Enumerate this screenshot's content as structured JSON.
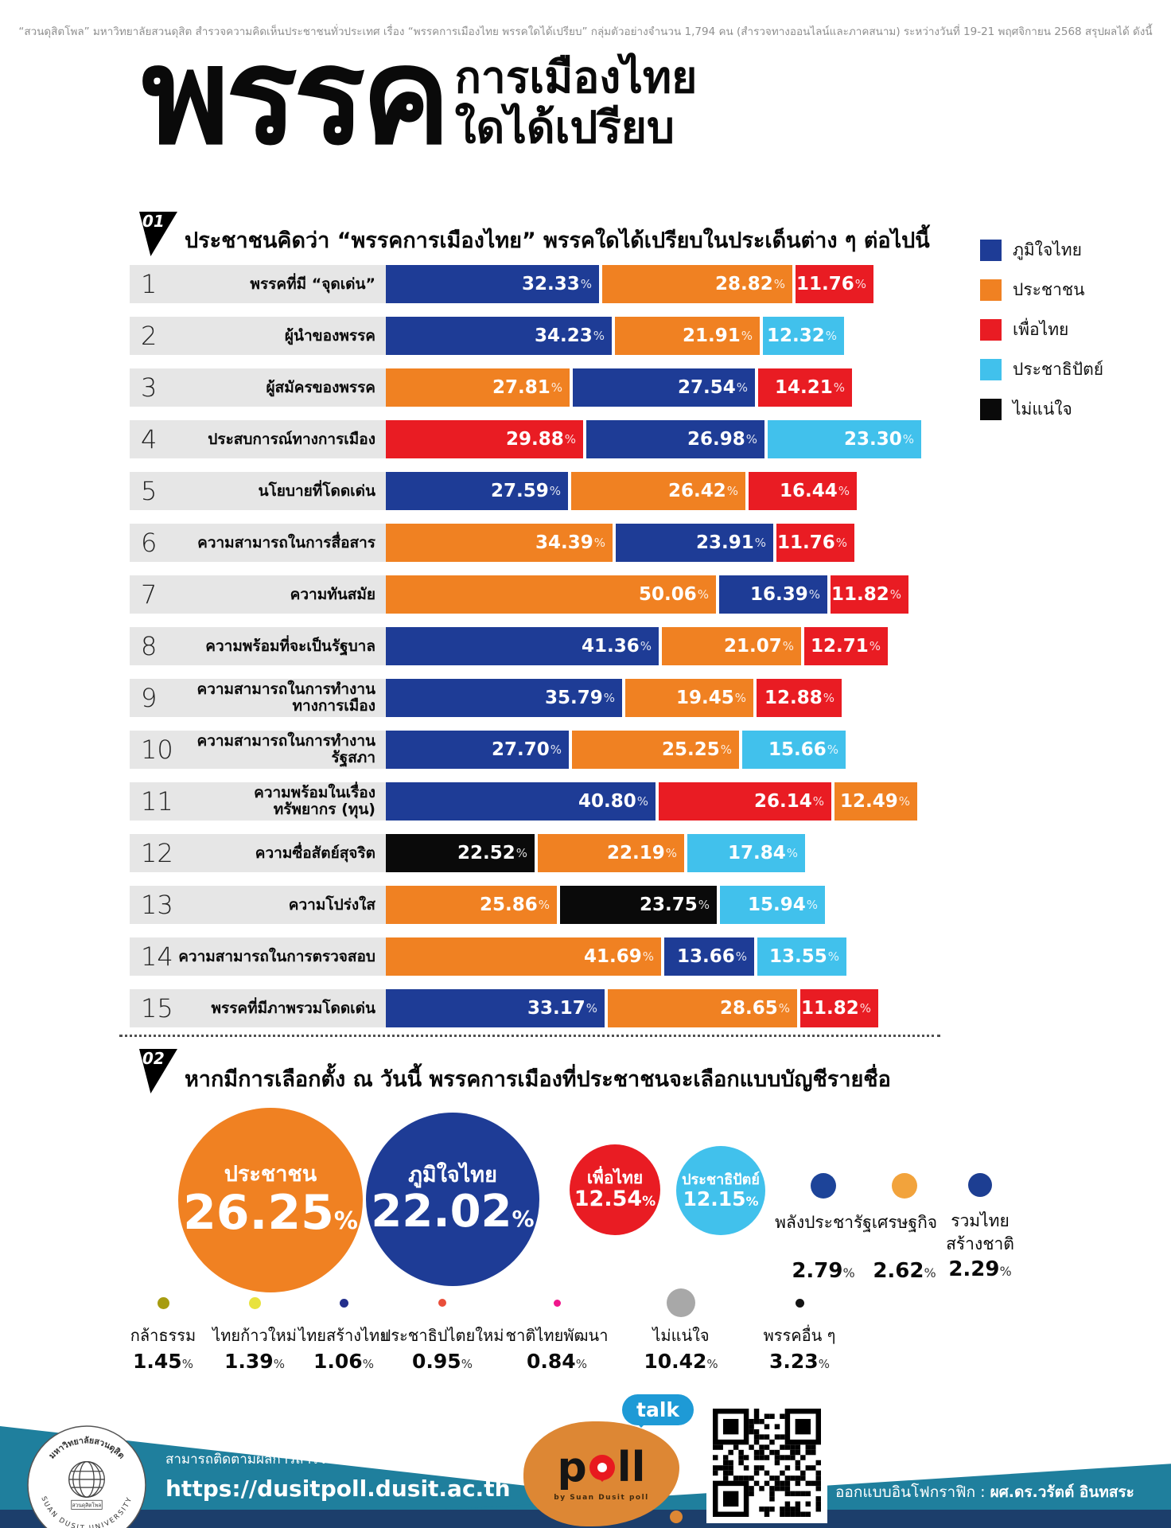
{
  "disclaimer": "“สวนดุสิตโพล” มหาวิทยาลัยสวนดุสิต สำรวจความคิดเห็นประชาชนทั่วประเทศ เรื่อง “พรรคการเมืองไทย พรรคใดได้เปรียบ” กลุ่มตัวอย่างจำนวน 1,794 คน  (สำรวจทางออนไลน์และภาคสนาม) ระหว่างวันที่ 19-21 พฤศจิกายน 2568  สรุปผลได้ ดังนี้",
  "title": {
    "big": "พรรค",
    "line1": "การเมืองไทย",
    "line2": "ใดได้เปรียบ"
  },
  "colors": {
    "blue": "#1e3c96",
    "orange": "#f08122",
    "red": "#e91c23",
    "lightblue": "#41c1ec",
    "black": "#0a0a0a",
    "label_bg": "#e6e6e6",
    "teal": "#1f7f9d",
    "navy": "#1c3e6b"
  },
  "chart_data": [
    {
      "type": "bar",
      "badge": "01",
      "title": "ประชาชนคิดว่า “พรรคการเมืองไทย” พรรคใดได้เปรียบในประเด็นต่าง ๆ ต่อไปนี้",
      "unit": "%",
      "stacked": true,
      "xlim": [
        0,
        100
      ],
      "legend": [
        {
          "label": "ภูมิใจไทย",
          "color_key": "blue"
        },
        {
          "label": "ประชาชน",
          "color_key": "orange"
        },
        {
          "label": "เพื่อไทย",
          "color_key": "red"
        },
        {
          "label": "ประชาธิปัตย์",
          "color_key": "lightblue"
        },
        {
          "label": "ไม่แน่ใจ",
          "color_key": "black"
        }
      ],
      "rows": [
        {
          "n": "1",
          "label": [
            "พรรคที่มี “จุดเด่น”"
          ],
          "segments": [
            {
              "party": "ภูมิใจไทย",
              "color_key": "blue",
              "value": 32.33
            },
            {
              "party": "ประชาชน",
              "color_key": "orange",
              "value": 28.82
            },
            {
              "party": "เพื่อไทย",
              "color_key": "red",
              "value": 11.76
            }
          ]
        },
        {
          "n": "2",
          "label": [
            "ผู้นำของพรรค"
          ],
          "segments": [
            {
              "party": "ภูมิใจไทย",
              "color_key": "blue",
              "value": 34.23
            },
            {
              "party": "ประชาชน",
              "color_key": "orange",
              "value": 21.91
            },
            {
              "party": "ประชาธิปัตย์",
              "color_key": "lightblue",
              "value": 12.32
            }
          ]
        },
        {
          "n": "3",
          "label": [
            "ผู้สมัครของพรรค"
          ],
          "segments": [
            {
              "party": "ประชาชน",
              "color_key": "orange",
              "value": 27.81
            },
            {
              "party": "ภูมิใจไทย",
              "color_key": "blue",
              "value": 27.54
            },
            {
              "party": "เพื่อไทย",
              "color_key": "red",
              "value": 14.21
            }
          ]
        },
        {
          "n": "4",
          "label": [
            "ประสบการณ์ทางการเมือง"
          ],
          "segments": [
            {
              "party": "เพื่อไทย",
              "color_key": "red",
              "value": 29.88
            },
            {
              "party": "ภูมิใจไทย",
              "color_key": "blue",
              "value": 26.98
            },
            {
              "party": "ประชาธิปัตย์",
              "color_key": "lightblue",
              "value": 23.3
            }
          ]
        },
        {
          "n": "5",
          "label": [
            "นโยบายที่โดดเด่น"
          ],
          "segments": [
            {
              "party": "ภูมิใจไทย",
              "color_key": "blue",
              "value": 27.59
            },
            {
              "party": "ประชาชน",
              "color_key": "orange",
              "value": 26.42
            },
            {
              "party": "เพื่อไทย",
              "color_key": "red",
              "value": 16.44
            }
          ]
        },
        {
          "n": "6",
          "label": [
            "ความสามารถในการสื่อสาร"
          ],
          "segments": [
            {
              "party": "ประชาชน",
              "color_key": "orange",
              "value": 34.39
            },
            {
              "party": "ภูมิใจไทย",
              "color_key": "blue",
              "value": 23.91
            },
            {
              "party": "เพื่อไทย",
              "color_key": "red",
              "value": 11.76
            }
          ]
        },
        {
          "n": "7",
          "label": [
            "ความทันสมัย"
          ],
          "segments": [
            {
              "party": "ประชาชน",
              "color_key": "orange",
              "value": 50.06
            },
            {
              "party": "ภูมิใจไทย",
              "color_key": "blue",
              "value": 16.39
            },
            {
              "party": "เพื่อไทย",
              "color_key": "red",
              "value": 11.82
            }
          ]
        },
        {
          "n": "8",
          "label": [
            "ความพร้อมที่จะเป็นรัฐบาล"
          ],
          "segments": [
            {
              "party": "ภูมิใจไทย",
              "color_key": "blue",
              "value": 41.36
            },
            {
              "party": "ประชาชน",
              "color_key": "orange",
              "value": 21.07
            },
            {
              "party": "เพื่อไทย",
              "color_key": "red",
              "value": 12.71
            }
          ]
        },
        {
          "n": "9",
          "label": [
            "ความสามารถในการทำงาน",
            "ทางการเมือง"
          ],
          "segments": [
            {
              "party": "ภูมิใจไทย",
              "color_key": "blue",
              "value": 35.79
            },
            {
              "party": "ประชาชน",
              "color_key": "orange",
              "value": 19.45
            },
            {
              "party": "เพื่อไทย",
              "color_key": "red",
              "value": 12.88
            }
          ]
        },
        {
          "n": "10",
          "label": [
            "ความสามารถในการทำงาน",
            "รัฐสภา"
          ],
          "segments": [
            {
              "party": "ภูมิใจไทย",
              "color_key": "blue",
              "value": 27.7
            },
            {
              "party": "ประชาชน",
              "color_key": "orange",
              "value": 25.25
            },
            {
              "party": "ประชาธิปัตย์",
              "color_key": "lightblue",
              "value": 15.66
            }
          ]
        },
        {
          "n": "11",
          "label": [
            "ความพร้อมในเรื่อง",
            "ทรัพยากร (ทุน)"
          ],
          "segments": [
            {
              "party": "ภูมิใจไทย",
              "color_key": "blue",
              "value": 40.8
            },
            {
              "party": "เพื่อไทย",
              "color_key": "red",
              "value": 26.14
            },
            {
              "party": "ประชาชน",
              "color_key": "orange",
              "value": 12.49
            }
          ]
        },
        {
          "n": "12",
          "label": [
            "ความซื่อสัตย์สุจริต"
          ],
          "segments": [
            {
              "party": "ไม่แน่ใจ",
              "color_key": "black",
              "value": 22.52
            },
            {
              "party": "ประชาชน",
              "color_key": "orange",
              "value": 22.19
            },
            {
              "party": "ประชาธิปัตย์",
              "color_key": "lightblue",
              "value": 17.84
            }
          ]
        },
        {
          "n": "13",
          "label": [
            "ความโปร่งใส"
          ],
          "segments": [
            {
              "party": "ประชาชน",
              "color_key": "orange",
              "value": 25.86
            },
            {
              "party": "ไม่แน่ใจ",
              "color_key": "black",
              "value": 23.75
            },
            {
              "party": "ประชาธิปัตย์",
              "color_key": "lightblue",
              "value": 15.94
            }
          ]
        },
        {
          "n": "14",
          "label": [
            "ความสามารถในการตรวจสอบ"
          ],
          "segments": [
            {
              "party": "ประชาชน",
              "color_key": "orange",
              "value": 41.69
            },
            {
              "party": "ภูมิใจไทย",
              "color_key": "blue",
              "value": 13.66
            },
            {
              "party": "ประชาธิปัตย์",
              "color_key": "lightblue",
              "value": 13.55
            }
          ]
        },
        {
          "n": "15",
          "label": [
            "พรรคที่มีภาพรวมโดดเด่น"
          ],
          "segments": [
            {
              "party": "ภูมิใจไทย",
              "color_key": "blue",
              "value": 33.17
            },
            {
              "party": "ประชาชน",
              "color_key": "orange",
              "value": 28.65
            },
            {
              "party": "เพื่อไทย",
              "color_key": "red",
              "value": 11.82
            }
          ]
        }
      ]
    },
    {
      "type": "bubble",
      "badge": "02",
      "title": "หากมีการเลือกตั้ง ณ วันนี้ พรรคการเมืองที่ประชาชนจะเลือกแบบบัญชีรายชื่อ",
      "unit": "%",
      "bubbles": [
        {
          "name": "ประชาชน",
          "value": 26.25,
          "color_key": "orange"
        },
        {
          "name": "ภูมิใจไทย",
          "value": 22.02,
          "color_key": "blue"
        },
        {
          "name": "เพื่อไทย",
          "value": 12.54,
          "color_key": "red"
        },
        {
          "name": "ประชาธิปัตย์",
          "value": 12.15,
          "color_key": "lightblue"
        }
      ],
      "mid_dots": [
        {
          "name_lines": [
            "พลังประชารัฐ"
          ],
          "value": 2.79,
          "color": "#1d4499"
        },
        {
          "name_lines": [
            "เศรษฐกิจ"
          ],
          "value": 2.62,
          "color": "#f2a33c"
        },
        {
          "name_lines": [
            "รวมไทย",
            "สร้างชาติ"
          ],
          "value": 2.29,
          "color": "#1d3e92"
        }
      ],
      "small_parties": [
        {
          "name": "กล้าธรรม",
          "value": 1.45,
          "color": "#a79c10"
        },
        {
          "name": "ไทยก้าวใหม่",
          "value": 1.39,
          "color": "#e8e23e"
        },
        {
          "name": "ไทยสร้างไทย",
          "value": 1.06,
          "color": "#232f8c"
        },
        {
          "name": "ประชาธิปไตยใหม่",
          "value": 0.95,
          "color": "#e94e3a"
        },
        {
          "name": "ชาติไทยพัฒนา",
          "value": 0.84,
          "color": "#f0168c"
        },
        {
          "name": "ไม่แน่ใจ",
          "value": 10.42,
          "color": "#a8a8a8"
        },
        {
          "name": "พรรคอื่น ๆ",
          "value": 3.23,
          "color": "#141414"
        }
      ]
    }
  ],
  "footer": {
    "follow_text": "สามารถติดตามผลการสำรวจของสวนดุสิตโพล ได้ที่",
    "url": "https://dusitpoll.dusit.ac.th",
    "credit_label": "ออกแบบอินโฟกราฟิก :",
    "credit_name": "ผศ.ดร.วรัตต์ อินทสระ",
    "poll": {
      "p": "p",
      "ll": "ll",
      "by": "by Suan Dusit poll",
      "talk": "talk"
    },
    "university": {
      "thai": "มหาวิทยาลัยสวนดุสิต",
      "eng": "SUAN DUSIT UNIVERSITY",
      "banner": "สวนดุสิตโพล"
    }
  }
}
